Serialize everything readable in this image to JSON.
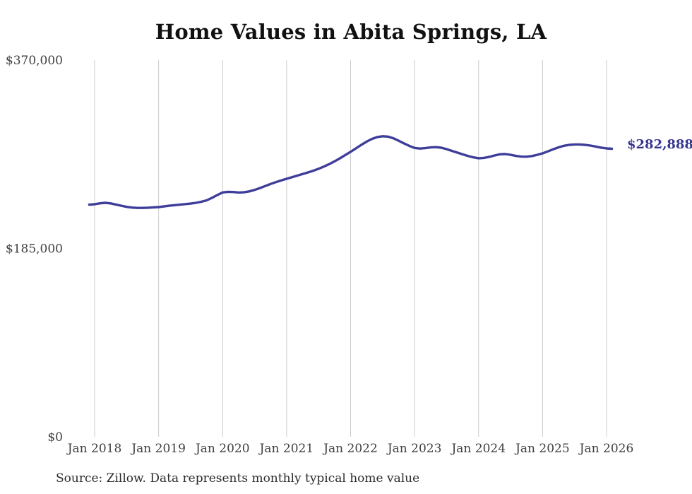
{
  "title": "Home Values in Abita Springs, LA",
  "latest_value_label": "$282,888",
  "source_note": "Source: Zillow. Data represents monthly typical home value",
  "colors": {
    "line": "#3e3e9a",
    "latest_label_text": "#35358e",
    "gridline": "#cccccc",
    "title_text": "#111111",
    "axis_text": "#3f3f3f",
    "source_text": "#2b2b2b",
    "background": "#ffffff"
  },
  "chart_data": {
    "type": "line",
    "title": "Home Values in Abita Springs, LA",
    "unit": "USD",
    "interval": "monthly",
    "start_month": "2017-12",
    "end_month": "2026-02",
    "latest_value": 282888,
    "ylim": [
      0,
      370000
    ],
    "grid": "vertical-only",
    "legend": "none",
    "y_ticks": [
      {
        "label": "$0",
        "value": 0
      },
      {
        "label": "$185,000",
        "value": 185000
      },
      {
        "label": "$370,000",
        "value": 370000
      }
    ],
    "x_tick_labels": [
      "Jan 2018",
      "Jan 2019",
      "Jan 2020",
      "Jan 2021",
      "Jan 2022",
      "Jan 2023",
      "Jan 2024",
      "Jan 2025",
      "Jan 2026"
    ],
    "values": [
      228000,
      228400,
      229300,
      229800,
      229200,
      228100,
      226900,
      225800,
      225100,
      224800,
      224800,
      225000,
      225300,
      225600,
      226200,
      226900,
      227500,
      228000,
      228500,
      229000,
      229800,
      230800,
      232200,
      234600,
      237400,
      240000,
      240600,
      240400,
      239900,
      240100,
      241000,
      242500,
      244300,
      246300,
      248300,
      250100,
      251800,
      253400,
      255000,
      256500,
      258000,
      259600,
      261300,
      263200,
      265400,
      267800,
      270500,
      273500,
      276700,
      279900,
      283300,
      286700,
      289900,
      292500,
      294400,
      295200,
      294800,
      293200,
      290800,
      288200,
      285700,
      283700,
      283100,
      283500,
      284200,
      284500,
      283900,
      282500,
      280800,
      279100,
      277400,
      275900,
      274500,
      273600,
      273900,
      274900,
      276300,
      277500,
      277700,
      276900,
      275900,
      275200,
      275100,
      275700,
      276900,
      278400,
      280300,
      282400,
      284300,
      285800,
      286700,
      287100,
      287100,
      286700,
      286000,
      285000,
      284000,
      283200,
      282888
    ]
  }
}
